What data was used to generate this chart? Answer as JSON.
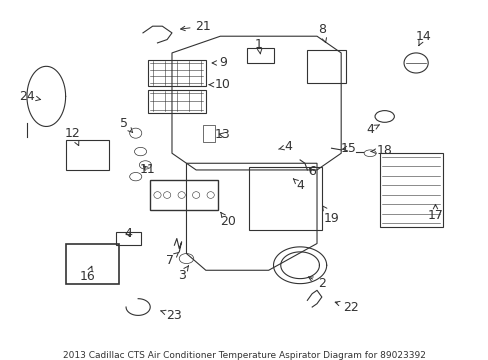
{
  "title": "2013 Cadillac CTS Air Conditioner Temperature Aspirator Diagram for 89023392",
  "bg_color": "#ffffff",
  "fig_width": 4.89,
  "fig_height": 3.6,
  "dpi": 100,
  "title_fontsize": 6.5,
  "label_fontsize": 9,
  "gray": "#333333",
  "lw": 0.8
}
